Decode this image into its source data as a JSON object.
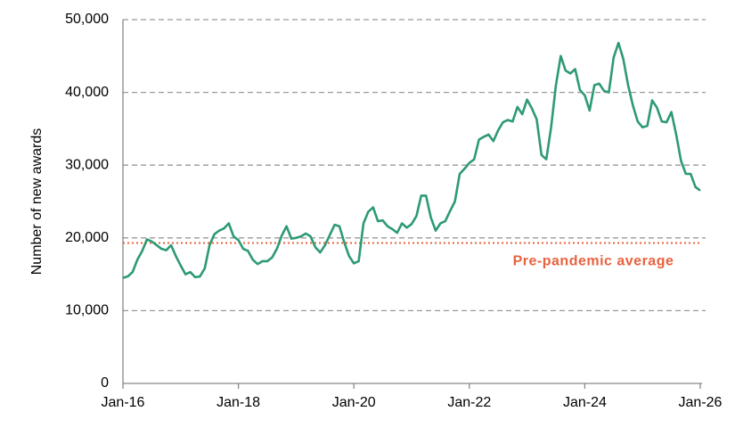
{
  "chart_data": {
    "type": "line",
    "y_label": "Number of new awards",
    "categories": [
      "Jan-16",
      null,
      null,
      null,
      null,
      null,
      null,
      null,
      null,
      null,
      null,
      null,
      null,
      null,
      null,
      null,
      null,
      null,
      null,
      null,
      null,
      null,
      null,
      null,
      "Jan-18",
      null,
      null,
      null,
      null,
      null,
      null,
      null,
      null,
      null,
      null,
      null,
      null,
      null,
      null,
      null,
      null,
      null,
      null,
      null,
      null,
      null,
      null,
      null,
      "Jan-20",
      null,
      null,
      null,
      null,
      null,
      null,
      null,
      null,
      null,
      null,
      null,
      null,
      null,
      null,
      null,
      null,
      null,
      null,
      null,
      null,
      null,
      null,
      null,
      "Jan-22",
      null,
      null,
      null,
      null,
      null,
      null,
      null,
      null,
      null,
      null,
      null,
      null,
      null,
      null,
      null,
      null,
      null,
      null,
      null,
      null,
      null,
      null,
      null,
      "Jan-24",
      null,
      null,
      null,
      null,
      null,
      null,
      null,
      null,
      null,
      null,
      null,
      null,
      null,
      null,
      null,
      null,
      null,
      null,
      null,
      null,
      null,
      null,
      null,
      "Jan-26"
    ],
    "values": [
      14500,
      14700,
      15300,
      17000,
      18200,
      19800,
      19500,
      19000,
      18500,
      18300,
      19000,
      17500,
      16200,
      15000,
      15300,
      14600,
      14700,
      15800,
      19000,
      20500,
      21000,
      21300,
      22000,
      20200,
      19700,
      18500,
      18200,
      17000,
      16400,
      16800,
      16800,
      17300,
      18500,
      20300,
      21600,
      19900,
      20000,
      20200,
      20600,
      20200,
      18700,
      18000,
      19000,
      20400,
      21800,
      21600,
      19400,
      17500,
      16500,
      16800,
      22000,
      23600,
      24200,
      22300,
      22400,
      21600,
      21200,
      20700,
      22000,
      21400,
      21900,
      23000,
      25800,
      25800,
      22800,
      21000,
      22000,
      22300,
      23700,
      25000,
      28800,
      29500,
      30300,
      30800,
      33500,
      33900,
      34200,
      33300,
      34800,
      35900,
      36200,
      36000,
      38000,
      37000,
      39000,
      37800,
      36300,
      31400,
      30800,
      35200,
      41000,
      45000,
      43000,
      42600,
      43200,
      40300,
      39600,
      37500,
      41000,
      41200,
      40200,
      40000,
      44800,
      46800,
      44600,
      41000,
      38200,
      36000,
      35200,
      35400,
      38900,
      37900,
      36000,
      35900,
      37300,
      34200,
      30600,
      28800,
      28800,
      27000,
      26500
    ],
    "color": "#2e9a73",
    "ylim": [
      0,
      50000
    ],
    "yticks": [
      {
        "value": 0,
        "label": "0"
      },
      {
        "value": 10000,
        "label": "10,000"
      },
      {
        "value": 20000,
        "label": "20,000"
      },
      {
        "value": 30000,
        "label": "30,000"
      },
      {
        "value": 40000,
        "label": "40,000"
      },
      {
        "value": 50000,
        "label": "50,000"
      }
    ],
    "grid": true,
    "reference_line": {
      "value": 19300,
      "label": "Pre-pandemic average",
      "color": "#e8623f"
    }
  }
}
